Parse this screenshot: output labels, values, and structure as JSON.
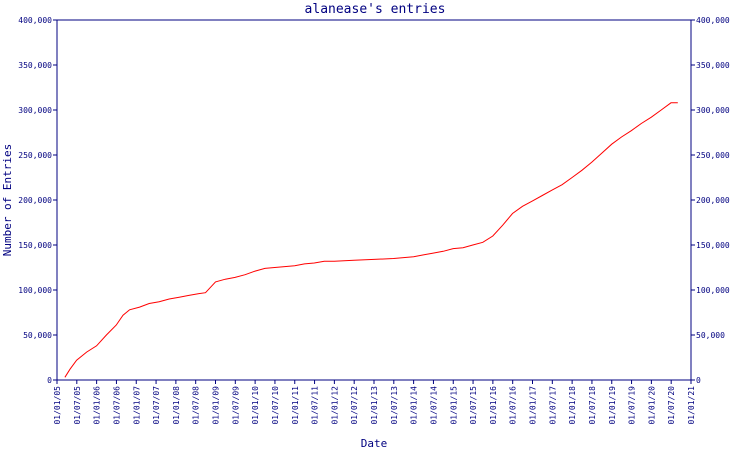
{
  "chart_data": {
    "type": "line",
    "title": "alanease's entries",
    "xlabel": "Date",
    "ylabel": "Number of Entries",
    "ylim": [
      0,
      400000
    ],
    "yticks": [
      0,
      50000,
      100000,
      150000,
      200000,
      250000,
      300000,
      350000,
      400000
    ],
    "ytick_labels": [
      "0",
      "50,000",
      "100,000",
      "150,000",
      "200,000",
      "250,000",
      "300,000",
      "350,000",
      "400,000"
    ],
    "xlim": [
      "2005-01-01",
      "2021-01-01"
    ],
    "xtick_labels": [
      "01/01/05",
      "01/07/05",
      "01/01/06",
      "01/07/06",
      "01/01/07",
      "01/07/07",
      "01/01/08",
      "01/07/08",
      "01/01/09",
      "01/07/09",
      "01/01/10",
      "01/07/10",
      "01/01/11",
      "01/07/11",
      "01/01/12",
      "01/07/12",
      "01/01/13",
      "01/07/13",
      "01/01/14",
      "01/07/14",
      "01/01/15",
      "01/07/15",
      "01/01/16",
      "01/07/16",
      "01/01/17",
      "01/07/17",
      "01/01/18",
      "01/07/18",
      "01/01/19",
      "01/07/19",
      "01/01/20",
      "01/07/20",
      "01/01/21"
    ],
    "right_axis": true,
    "grid": false,
    "colors": {
      "line": "#ff0000",
      "axis": "#000080"
    },
    "series": [
      {
        "x": [
          "2005-03-15",
          "2005-05-01",
          "2005-07-01",
          "2005-10-01",
          "2006-01-01",
          "2006-04-01",
          "2006-07-01",
          "2006-09-01",
          "2006-11-01",
          "2007-02-01",
          "2007-05-01",
          "2007-08-01",
          "2007-11-01",
          "2008-02-01",
          "2008-05-01",
          "2008-08-01",
          "2008-10-01",
          "2009-01-01",
          "2009-04-01",
          "2009-07-01",
          "2009-10-01",
          "2010-01-01",
          "2010-04-01",
          "2010-07-01",
          "2010-10-01",
          "2011-01-01",
          "2011-04-01",
          "2011-07-01",
          "2011-10-01",
          "2012-01-01",
          "2012-07-01",
          "2013-01-01",
          "2013-07-01",
          "2013-10-01",
          "2014-01-01",
          "2014-04-01",
          "2014-07-01",
          "2014-10-01",
          "2015-01-01",
          "2015-04-01",
          "2015-07-01",
          "2015-10-01",
          "2016-01-01",
          "2016-04-01",
          "2016-07-01",
          "2016-10-01",
          "2017-01-01",
          "2017-04-01",
          "2017-07-01",
          "2017-10-01",
          "2018-01-01",
          "2018-04-01",
          "2018-07-01",
          "2018-10-01",
          "2019-01-01",
          "2019-04-01",
          "2019-07-01",
          "2019-10-01",
          "2020-01-01",
          "2020-04-01",
          "2020-07-01",
          "2020-09-01"
        ],
        "values": [
          3000,
          12000,
          22000,
          31000,
          38000,
          50000,
          61000,
          72000,
          78000,
          81000,
          85000,
          87000,
          90000,
          92000,
          94000,
          96000,
          97000,
          109000,
          112000,
          114000,
          117000,
          121000,
          124000,
          125000,
          126000,
          127000,
          129000,
          130000,
          132000,
          132000,
          133000,
          134000,
          135000,
          136000,
          137000,
          139000,
          141000,
          143000,
          146000,
          147000,
          150000,
          153000,
          160000,
          172000,
          185000,
          193000,
          199000,
          205000,
          211000,
          217000,
          225000,
          233000,
          242000,
          252000,
          262000,
          270000,
          277000,
          285000,
          292000,
          300000,
          308000,
          308000
        ]
      }
    ]
  }
}
